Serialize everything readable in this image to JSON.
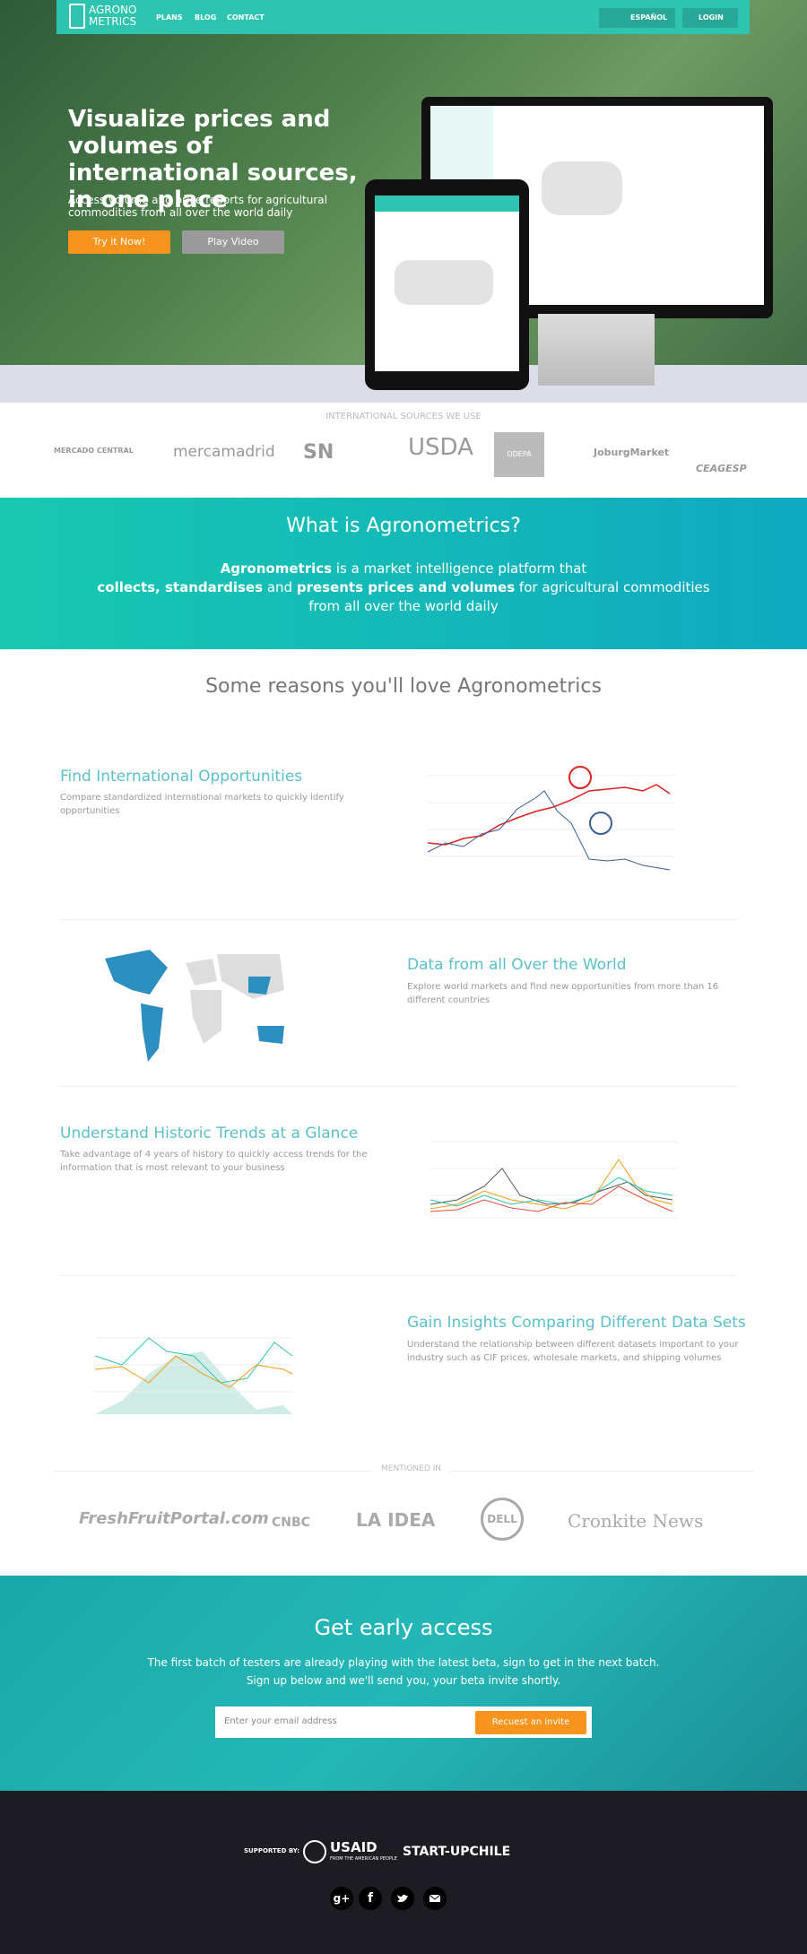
{
  "nav": {
    "logo_top": "AGRONO",
    "logo_bottom": "METRICS",
    "links": [
      "PLANS",
      "BLOG",
      "CONTACT"
    ],
    "language": "ESPAÑOL",
    "login": "LOGIN"
  },
  "hero": {
    "title": "Visualize prices and volumes of international sources, in one place",
    "subtitle": "Access volume and price reports for agricultural commodities from all over the world daily",
    "try": "Try it Now!",
    "play": "Play Video"
  },
  "sources": {
    "label": "INTERNATIONAL SOURCES WE USE",
    "logos": [
      "MERCADO CENTRAL",
      "mercamadrid",
      "SN",
      "USDA",
      "ODEPA",
      "JoburgMarket",
      "CEAGESP"
    ]
  },
  "about": {
    "title": "What is Agronometrics?",
    "brand": "Agronometrics",
    "text1": "is a market intelligence platform that",
    "bold1": "collects, standardises",
    "text2": "and",
    "bold2": "presents prices and volumes",
    "text3": "for agricultural commodities from all over the world daily"
  },
  "reasons": {
    "title": "Some reasons you'll love Agronometrics"
  },
  "features": [
    {
      "title": "Find International Opportunities",
      "text": "Compare standardized international markets to quickly identify opportunities"
    },
    {
      "title": "Data from all Over the World",
      "text": "Explore world markets and find new opportunities from more than 16 different countries"
    },
    {
      "title": "Understand Historic Trends at a Glance",
      "text": "Take advantage of 4 years of history to quickly access trends for the information that is most relevant to your business"
    },
    {
      "title": "Gain Insights Comparing Different Data Sets",
      "text": "Understand the relationship between different datasets important to your industry such as CIF prices, wholesale markets, and shipping volumes"
    }
  ],
  "mentioned": {
    "label": "MENTIONED IN",
    "logos": [
      "FreshFruitPortal.com",
      "CNBC",
      "LA IDEA",
      "DELL",
      "Cronkite News"
    ]
  },
  "access": {
    "title": "Get early access",
    "line1": "The first batch of testers are already playing with the latest beta, sign to get in the next batch.",
    "line2": "Sign up below and we'll send you, your beta invite shortly.",
    "placeholder": "Enter your email address",
    "button": "Recuest an invite"
  },
  "footer": {
    "supported": "SUPPORTED BY:",
    "usaid": "USAID",
    "usaid_sub": "FROM THE AMERICAN PEOPLE",
    "startup": "START-UPCHILE",
    "social": [
      "g+",
      "f"
    ]
  }
}
